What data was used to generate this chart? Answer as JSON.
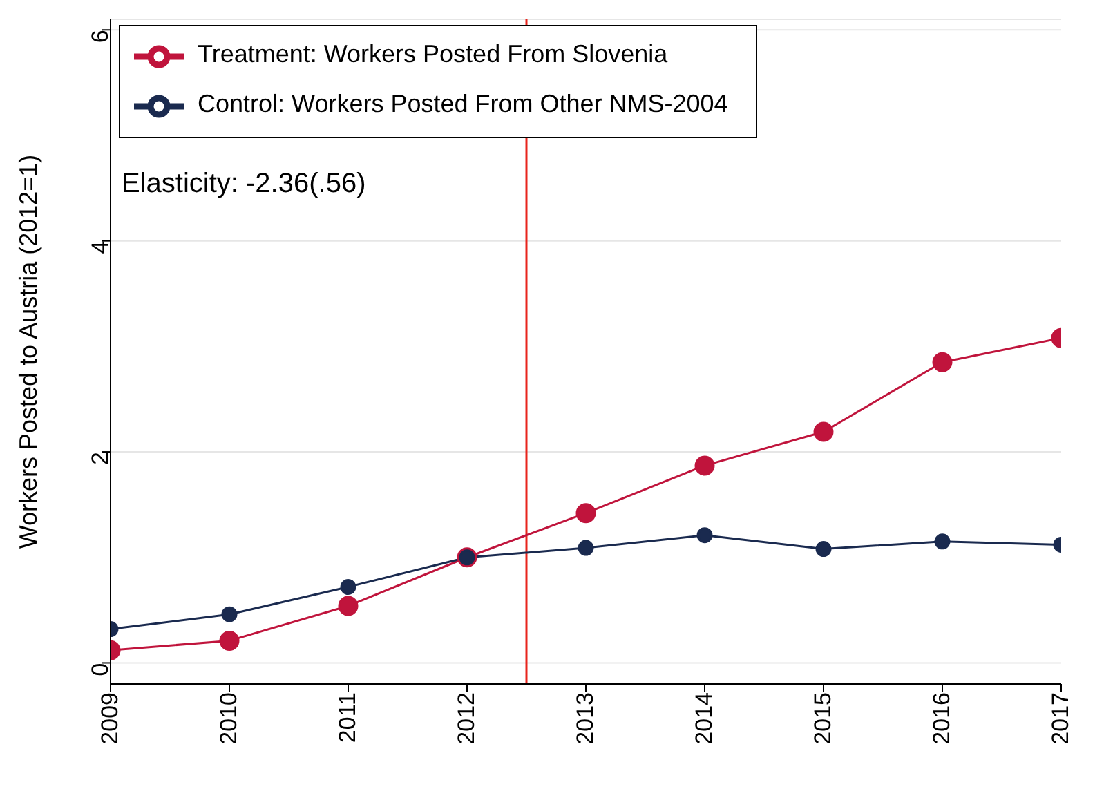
{
  "chart_data": {
    "type": "line",
    "ylabel": "Workers Posted to Austria (2012=1)",
    "x": [
      2009,
      2010,
      2011,
      2012,
      2013,
      2014,
      2015,
      2016,
      2017
    ],
    "series": [
      {
        "name": "Treatment: Workers Posted From Slovenia",
        "color": "#c0143c",
        "values": [
          0.12,
          0.21,
          0.54,
          1.0,
          1.42,
          1.87,
          2.19,
          2.85,
          3.08
        ]
      },
      {
        "name": "Control: Workers Posted From Other NMS-2004",
        "color": "#1a2a4f",
        "values": [
          0.32,
          0.46,
          0.72,
          1.0,
          1.09,
          1.21,
          1.08,
          1.15,
          1.12
        ]
      }
    ],
    "xlim": [
      2009,
      2017
    ],
    "xticks": [
      2009,
      2010,
      2011,
      2012,
      2013,
      2014,
      2015,
      2016,
      2017
    ],
    "ylim": [
      -0.2,
      6.1
    ],
    "yticks": [
      0,
      2,
      4,
      6
    ],
    "ref_lines": [
      {
        "axis": "x",
        "value": 2012.5,
        "color": "#e8241c"
      }
    ],
    "annotations": [
      "Elasticity: -2.36(.56)"
    ],
    "grid": "y",
    "legend": "top left",
    "marker": "circle",
    "line_style": "solid"
  }
}
